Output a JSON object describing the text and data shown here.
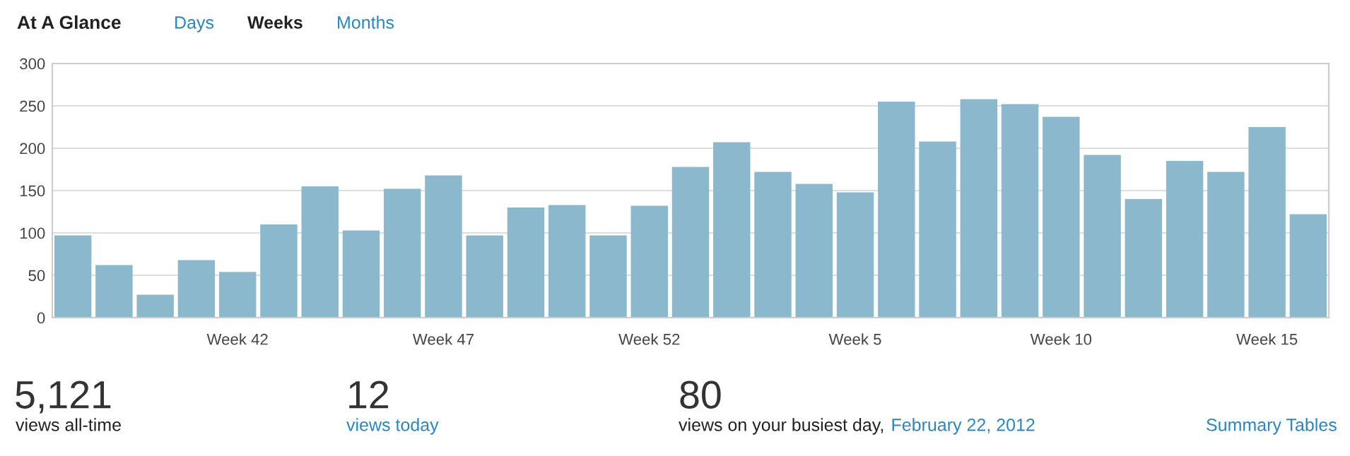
{
  "chart_data": {
    "type": "bar",
    "title": "At A Glance",
    "annotations": [
      "Days",
      "Weeks",
      "Months",
      "5,121",
      "views all-time",
      "12",
      "views today",
      "80",
      "views on your busiest day,",
      "February 22, 2012",
      "Summary Tables"
    ],
    "categories": [
      null,
      null,
      null,
      null,
      "Week 42",
      null,
      null,
      null,
      null,
      "Week 47",
      null,
      null,
      null,
      null,
      "Week 52",
      null,
      null,
      null,
      null,
      "Week 5",
      null,
      null,
      null,
      null,
      "Week 10",
      null,
      null,
      null,
      null,
      "Week 15",
      null
    ],
    "values": [
      97,
      62,
      27,
      68,
      54,
      110,
      155,
      103,
      152,
      168,
      97,
      130,
      133,
      97,
      132,
      178,
      207,
      172,
      158,
      148,
      255,
      208,
      258,
      252,
      237,
      192,
      140,
      185,
      172,
      225,
      122
    ],
    "color": "#8bb8cc",
    "ylim": [
      0,
      300
    ],
    "yticks": [
      0,
      50,
      100,
      150,
      200,
      250,
      300
    ],
    "grid": "y"
  }
}
